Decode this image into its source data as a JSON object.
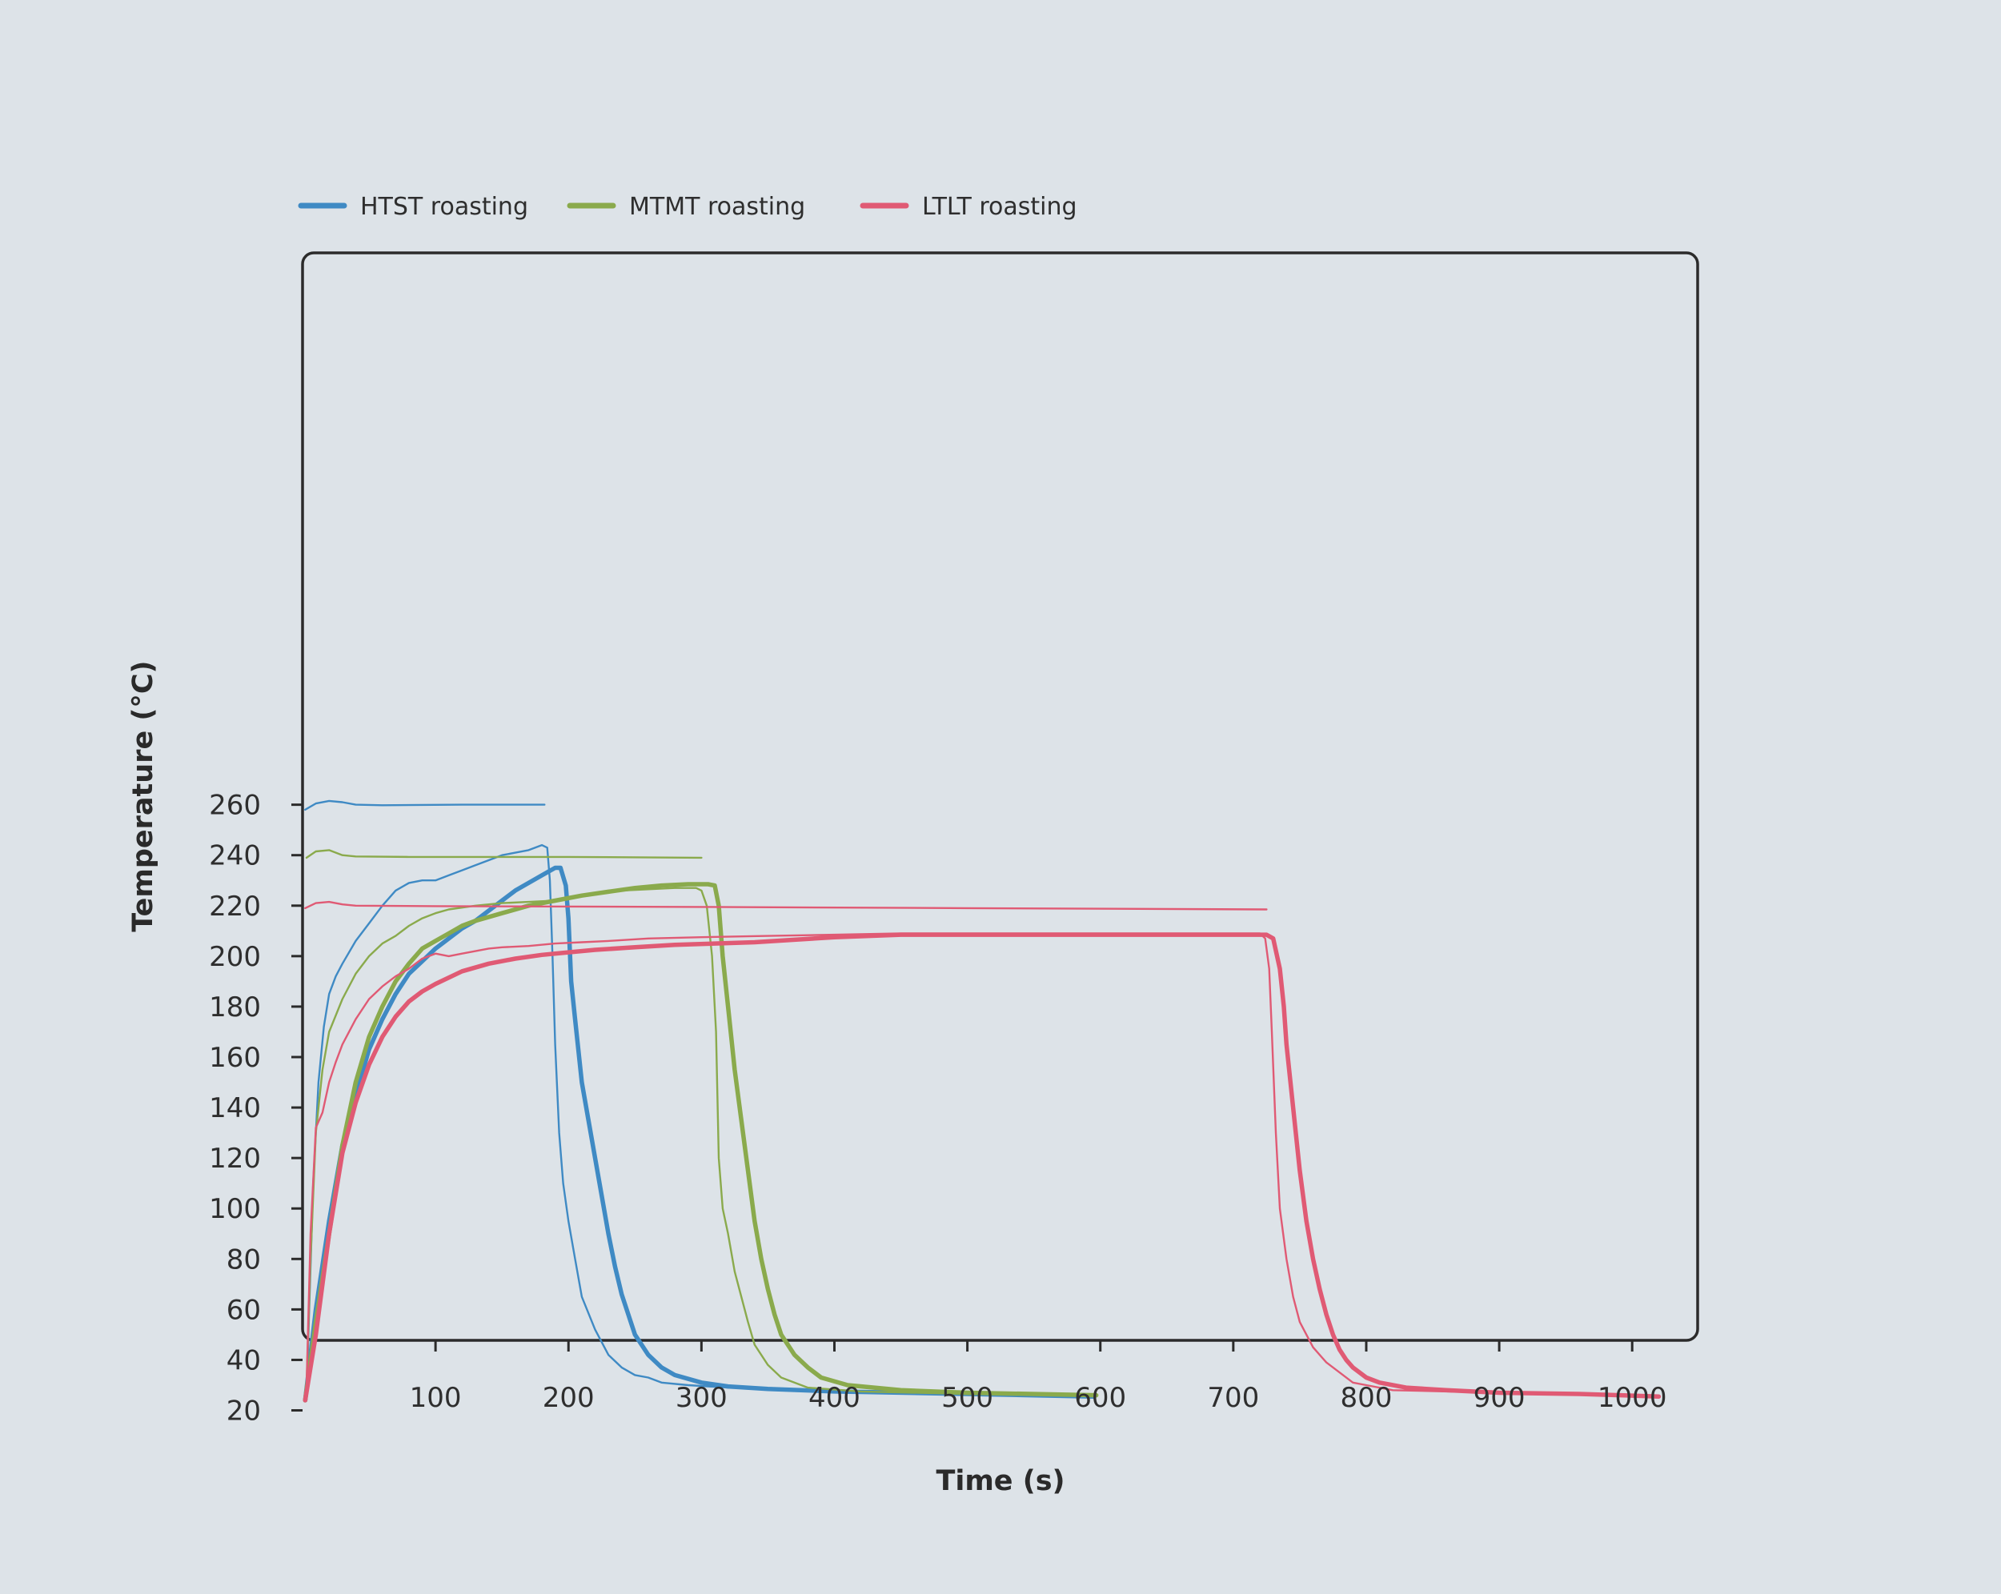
{
  "chart_data": {
    "type": "line",
    "title": "",
    "xlabel": "Time (s)",
    "ylabel": "Temperature (°C)",
    "xlim": [
      0,
      1050
    ],
    "ylim": [
      0,
      270
    ],
    "xticks": [
      100,
      200,
      300,
      400,
      500,
      600,
      700,
      800,
      900,
      1000
    ],
    "yticks": [
      20,
      40,
      60,
      80,
      100,
      120,
      140,
      160,
      180,
      200,
      220,
      240,
      260
    ],
    "grid": false,
    "legend_position": "top-left",
    "legend": [
      {
        "label": "HTST roasting",
        "color": "#3f8ac4"
      },
      {
        "label": "MTMT roasting",
        "color": "#8aaa4c"
      },
      {
        "label": "LTLT roasting",
        "color": "#e05a74"
      }
    ],
    "series": [
      {
        "legend_label": "HTST roasting",
        "line": "thin",
        "color": "#3f8ac4",
        "points": [
          [
            2,
            258
          ],
          [
            10,
            260.5
          ],
          [
            20,
            261.5
          ],
          [
            30,
            261
          ],
          [
            40,
            260
          ],
          [
            60,
            259.8
          ],
          [
            120,
            260
          ],
          [
            182,
            260
          ]
        ]
      },
      {
        "legend_label": "HTST roasting",
        "line": "thin",
        "color": "#3f8ac4",
        "points": [
          [
            3,
            25
          ],
          [
            5,
            60
          ],
          [
            8,
            110
          ],
          [
            12,
            150
          ],
          [
            16,
            172
          ],
          [
            20,
            185
          ],
          [
            25,
            192
          ],
          [
            30,
            197
          ],
          [
            40,
            206
          ],
          [
            50,
            213
          ],
          [
            60,
            220
          ],
          [
            70,
            226
          ],
          [
            80,
            229
          ],
          [
            90,
            230
          ],
          [
            100,
            230
          ],
          [
            110,
            232
          ],
          [
            120,
            234
          ],
          [
            130,
            236
          ],
          [
            140,
            238
          ],
          [
            150,
            240
          ],
          [
            160,
            241
          ],
          [
            170,
            242
          ],
          [
            180,
            244
          ],
          [
            184,
            243
          ],
          [
            186,
            230
          ],
          [
            188,
            200
          ],
          [
            190,
            165
          ],
          [
            193,
            130
          ],
          [
            196,
            110
          ],
          [
            200,
            95
          ],
          [
            205,
            80
          ],
          [
            210,
            65
          ],
          [
            220,
            52
          ],
          [
            230,
            42
          ],
          [
            240,
            37
          ],
          [
            250,
            34
          ],
          [
            260,
            33
          ],
          [
            270,
            31
          ],
          [
            290,
            30
          ],
          [
            320,
            29
          ],
          [
            400,
            27.5
          ],
          [
            500,
            26.5
          ],
          [
            590,
            26
          ]
        ]
      },
      {
        "legend_label": "HTST roasting",
        "line": "thick",
        "color": "#3f8ac4",
        "points": [
          [
            2,
            24
          ],
          [
            10,
            60
          ],
          [
            20,
            95
          ],
          [
            30,
            125
          ],
          [
            40,
            145
          ],
          [
            50,
            163
          ],
          [
            60,
            175
          ],
          [
            70,
            185
          ],
          [
            80,
            193
          ],
          [
            90,
            198
          ],
          [
            100,
            203
          ],
          [
            110,
            207
          ],
          [
            120,
            211
          ],
          [
            130,
            214
          ],
          [
            140,
            218
          ],
          [
            150,
            222
          ],
          [
            160,
            226
          ],
          [
            170,
            229
          ],
          [
            180,
            232
          ],
          [
            190,
            235
          ],
          [
            194,
            235
          ],
          [
            198,
            228
          ],
          [
            200,
            215
          ],
          [
            202,
            190
          ],
          [
            205,
            175
          ],
          [
            210,
            150
          ],
          [
            215,
            135
          ],
          [
            220,
            120
          ],
          [
            225,
            105
          ],
          [
            230,
            90
          ],
          [
            235,
            77
          ],
          [
            240,
            66
          ],
          [
            245,
            58
          ],
          [
            250,
            50
          ],
          [
            260,
            42
          ],
          [
            270,
            37
          ],
          [
            280,
            34
          ],
          [
            300,
            31
          ],
          [
            320,
            29.5
          ],
          [
            350,
            28.5
          ],
          [
            400,
            27.5
          ],
          [
            500,
            26.5
          ],
          [
            595,
            25.5
          ]
        ]
      },
      {
        "legend_label": "MTMT roasting",
        "line": "thin",
        "color": "#8aaa4c",
        "points": [
          [
            3,
            239
          ],
          [
            10,
            241.5
          ],
          [
            20,
            242
          ],
          [
            30,
            240
          ],
          [
            40,
            239.5
          ],
          [
            80,
            239.3
          ],
          [
            200,
            239.3
          ],
          [
            300,
            239
          ]
        ]
      },
      {
        "legend_label": "MTMT roasting",
        "line": "thin",
        "color": "#8aaa4c",
        "points": [
          [
            3,
            30
          ],
          [
            6,
            80
          ],
          [
            10,
            130
          ],
          [
            15,
            155
          ],
          [
            20,
            170
          ],
          [
            30,
            183
          ],
          [
            40,
            193
          ],
          [
            50,
            200
          ],
          [
            60,
            205
          ],
          [
            70,
            208
          ],
          [
            80,
            212
          ],
          [
            90,
            215
          ],
          [
            100,
            217
          ],
          [
            110,
            218.5
          ],
          [
            130,
            220
          ],
          [
            150,
            221
          ],
          [
            170,
            221.5
          ],
          [
            190,
            222
          ],
          [
            200,
            223
          ],
          [
            220,
            225
          ],
          [
            240,
            226
          ],
          [
            260,
            226.5
          ],
          [
            280,
            227
          ],
          [
            296,
            227
          ],
          [
            300,
            226
          ],
          [
            304,
            220
          ],
          [
            308,
            200
          ],
          [
            311,
            170
          ],
          [
            313,
            120
          ],
          [
            316,
            100
          ],
          [
            320,
            90
          ],
          [
            325,
            75
          ],
          [
            330,
            65
          ],
          [
            335,
            55
          ],
          [
            340,
            46
          ],
          [
            350,
            38
          ],
          [
            360,
            33
          ],
          [
            380,
            29
          ],
          [
            420,
            27.5
          ],
          [
            500,
            26.5
          ],
          [
            595,
            26
          ]
        ]
      },
      {
        "legend_label": "MTMT roasting",
        "line": "thick",
        "color": "#8aaa4c",
        "points": [
          [
            2,
            24
          ],
          [
            10,
            55
          ],
          [
            20,
            90
          ],
          [
            30,
            125
          ],
          [
            40,
            150
          ],
          [
            50,
            168
          ],
          [
            60,
            180
          ],
          [
            70,
            190
          ],
          [
            80,
            197
          ],
          [
            90,
            203
          ],
          [
            100,
            206
          ],
          [
            110,
            209
          ],
          [
            120,
            212
          ],
          [
            130,
            214
          ],
          [
            150,
            217
          ],
          [
            170,
            220
          ],
          [
            190,
            222
          ],
          [
            210,
            224
          ],
          [
            230,
            225.5
          ],
          [
            250,
            227
          ],
          [
            270,
            228
          ],
          [
            290,
            228.5
          ],
          [
            305,
            228.5
          ],
          [
            310,
            228
          ],
          [
            313,
            220
          ],
          [
            316,
            200
          ],
          [
            320,
            180
          ],
          [
            325,
            155
          ],
          [
            330,
            135
          ],
          [
            335,
            115
          ],
          [
            340,
            95
          ],
          [
            345,
            80
          ],
          [
            350,
            68
          ],
          [
            355,
            58
          ],
          [
            360,
            50
          ],
          [
            370,
            42
          ],
          [
            380,
            37
          ],
          [
            390,
            33
          ],
          [
            410,
            30
          ],
          [
            450,
            28
          ],
          [
            500,
            27
          ],
          [
            597,
            26
          ]
        ]
      },
      {
        "legend_label": "LTLT roasting",
        "line": "thin",
        "color": "#e05a74",
        "points": [
          [
            2,
            219
          ],
          [
            10,
            221
          ],
          [
            20,
            221.5
          ],
          [
            30,
            220.5
          ],
          [
            40,
            220
          ],
          [
            100,
            219.8
          ],
          [
            300,
            219.5
          ],
          [
            500,
            219
          ],
          [
            725,
            218.5
          ]
        ]
      },
      {
        "legend_label": "LTLT roasting",
        "line": "thin",
        "color": "#e05a74",
        "points": [
          [
            3,
            30
          ],
          [
            6,
            90
          ],
          [
            10,
            132
          ],
          [
            15,
            138
          ],
          [
            20,
            150
          ],
          [
            25,
            158
          ],
          [
            30,
            165
          ],
          [
            40,
            175
          ],
          [
            50,
            183
          ],
          [
            60,
            188
          ],
          [
            70,
            192
          ],
          [
            80,
            195
          ],
          [
            90,
            199
          ],
          [
            100,
            201
          ],
          [
            110,
            200
          ],
          [
            120,
            201
          ],
          [
            130,
            202
          ],
          [
            140,
            203
          ],
          [
            150,
            203.5
          ],
          [
            170,
            204
          ],
          [
            190,
            205
          ],
          [
            210,
            205.5
          ],
          [
            230,
            206
          ],
          [
            260,
            207
          ],
          [
            300,
            207.5
          ],
          [
            350,
            208
          ],
          [
            400,
            208.5
          ],
          [
            450,
            209
          ],
          [
            500,
            209
          ],
          [
            600,
            209
          ],
          [
            700,
            209
          ],
          [
            720,
            209
          ],
          [
            724,
            207
          ],
          [
            727,
            195
          ],
          [
            729,
            170
          ],
          [
            732,
            130
          ],
          [
            735,
            100
          ],
          [
            740,
            80
          ],
          [
            745,
            65
          ],
          [
            750,
            55
          ],
          [
            760,
            45
          ],
          [
            770,
            39
          ],
          [
            780,
            35
          ],
          [
            790,
            31
          ],
          [
            800,
            30
          ],
          [
            820,
            28
          ],
          [
            900,
            27
          ],
          [
            1000,
            26
          ],
          [
            1020,
            25.5
          ]
        ]
      },
      {
        "legend_label": "LTLT roasting",
        "line": "thick",
        "color": "#e05a74",
        "points": [
          [
            2,
            24
          ],
          [
            10,
            50
          ],
          [
            20,
            90
          ],
          [
            30,
            122
          ],
          [
            40,
            142
          ],
          [
            50,
            157
          ],
          [
            60,
            168
          ],
          [
            70,
            176
          ],
          [
            80,
            182
          ],
          [
            90,
            186
          ],
          [
            100,
            189
          ],
          [
            120,
            194
          ],
          [
            140,
            197
          ],
          [
            160,
            199
          ],
          [
            180,
            200.5
          ],
          [
            200,
            201.5
          ],
          [
            220,
            202.5
          ],
          [
            250,
            203.5
          ],
          [
            280,
            204.5
          ],
          [
            310,
            205
          ],
          [
            340,
            205.5
          ],
          [
            370,
            206.5
          ],
          [
            400,
            207.5
          ],
          [
            450,
            208.5
          ],
          [
            500,
            208.5
          ],
          [
            600,
            208.5
          ],
          [
            700,
            208.5
          ],
          [
            725,
            208.5
          ],
          [
            730,
            207
          ],
          [
            735,
            195
          ],
          [
            738,
            180
          ],
          [
            740,
            165
          ],
          [
            745,
            140
          ],
          [
            750,
            115
          ],
          [
            755,
            95
          ],
          [
            760,
            80
          ],
          [
            765,
            68
          ],
          [
            770,
            58
          ],
          [
            775,
            50
          ],
          [
            780,
            44
          ],
          [
            785,
            40
          ],
          [
            790,
            37
          ],
          [
            800,
            33
          ],
          [
            810,
            31
          ],
          [
            830,
            29
          ],
          [
            860,
            28
          ],
          [
            900,
            27
          ],
          [
            960,
            26.5
          ],
          [
            1020,
            25.5
          ]
        ]
      }
    ]
  }
}
